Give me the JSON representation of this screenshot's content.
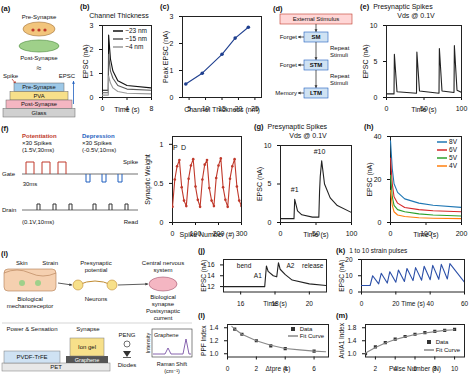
{
  "chart_data": [
    {
      "panel": "(b)",
      "type": "line",
      "title": "Channel Thickness",
      "xlabel": "Time (s)",
      "ylabel": "EPSC (nA)",
      "xlim": [
        0,
        8
      ],
      "xticks": [
        0,
        4,
        8
      ],
      "ylim": [
        0,
        3
      ],
      "yticks": [
        0,
        1,
        2,
        3
      ],
      "legend": "top-right",
      "x": [
        0,
        0.95,
        1,
        1.3,
        1.7,
        2.5,
        4,
        8
      ],
      "series": [
        {
          "name": "~23 nm",
          "color": "#111111",
          "values": [
            0.3,
            0.3,
            2.6,
            1.6,
            1.1,
            0.7,
            0.5,
            0.4
          ]
        },
        {
          "name": "~15 nm",
          "color": "#5b5b5b",
          "values": [
            0.2,
            0.2,
            1.8,
            1.1,
            0.8,
            0.5,
            0.35,
            0.3
          ]
        },
        {
          "name": "~4 nm",
          "color": "#9a9a9a",
          "values": [
            0.1,
            0.1,
            0.9,
            0.6,
            0.4,
            0.25,
            0.18,
            0.15
          ]
        }
      ]
    },
    {
      "panel": "(c)",
      "type": "line",
      "xlabel": "Channel Thickness (nm)",
      "ylabel": "Peak EPSC (nA)",
      "xlim": [
        3,
        27
      ],
      "xticks": [
        5,
        10,
        15,
        20,
        25
      ],
      "ylim": [
        0,
        3
      ],
      "yticks": [
        0,
        1,
        2,
        3
      ],
      "x": [
        4,
        9,
        15,
        19,
        23
      ],
      "series": [
        {
          "color": "#1f3f8f",
          "marker": "circle",
          "values": [
            0.5,
            0.9,
            1.6,
            2.2,
            2.6
          ]
        }
      ]
    },
    {
      "panel": "(e)",
      "type": "line",
      "title": "Presynaptic Spikes",
      "subtitle": "Vds @ 0.1V",
      "xlabel": "Time (s)",
      "ylabel": "EPSC (nA)",
      "xlim": [
        0,
        100
      ],
      "xticks": [
        0,
        50,
        100
      ],
      "ylim": [
        0,
        10
      ],
      "yticks": [
        0,
        5,
        10
      ],
      "x": [
        0,
        10,
        10.5,
        14,
        40,
        40.5,
        44,
        70,
        70.5,
        74,
        90,
        90.5,
        94,
        100
      ],
      "series": [
        {
          "color": "#222222",
          "values": [
            0.5,
            0.5,
            6.0,
            0.8,
            0.6,
            6.3,
            0.9,
            0.6,
            6.8,
            0.9,
            0.7,
            7.2,
            1.0,
            0.7
          ]
        }
      ]
    },
    {
      "type": "line",
      "xlabel": "Spike Number (#)",
      "ylabel": "Synaptic Weight",
      "xlim": [
        0,
        300
      ],
      "xticks": [
        0,
        100,
        200,
        300
      ],
      "ylim": [
        0,
        1.1
      ],
      "yticks": [
        0,
        0.5,
        1
      ],
      "x": [
        0,
        10,
        20,
        30,
        40,
        50,
        60,
        70,
        80,
        90,
        100,
        110,
        120,
        130,
        140,
        150,
        160,
        170,
        180,
        190,
        200,
        210,
        220,
        230,
        240,
        250,
        260,
        270,
        280,
        290,
        300
      ],
      "series": [
        {
          "color": "#c0392b",
          "marker": "circle",
          "values": [
            0.2,
            0.55,
            0.72,
            0.8,
            0.45,
            0.28,
            0.21,
            0.56,
            0.73,
            0.81,
            0.46,
            0.29,
            0.2,
            0.55,
            0.74,
            0.8,
            0.44,
            0.28,
            0.21,
            0.57,
            0.73,
            0.82,
            0.45,
            0.29,
            0.2,
            0.56,
            0.72,
            0.81,
            0.46,
            0.28,
            0.21
          ]
        }
      ],
      "annotations": [
        {
          "text": "P",
          "x": 12,
          "y": 0.95
        },
        {
          "text": "D",
          "x": 48,
          "y": 0.95
        }
      ]
    },
    {
      "panel": "(g)",
      "type": "line",
      "title": "Presynaptic Spikes",
      "subtitle": "Vds @ 0.1V",
      "xlabel": "Time (s)",
      "ylabel": "EPSC (nA)",
      "xlim": [
        0,
        100
      ],
      "xticks": [
        0,
        50,
        100
      ],
      "ylim": [
        0,
        10
      ],
      "yticks": [
        0,
        5,
        10
      ],
      "x": [
        0,
        19,
        20,
        24,
        30,
        45,
        54,
        55,
        56,
        58,
        62,
        70,
        80,
        100
      ],
      "series": [
        {
          "color": "#222222",
          "values": [
            0.5,
            0.5,
            3.0,
            1.5,
            1.0,
            0.7,
            0.7,
            4.0,
            6.0,
            8.0,
            5.0,
            3.2,
            2.2,
            1.3
          ]
        }
      ],
      "annotations": [
        {
          "text": "#1",
          "x": 20,
          "y": 4.3
        },
        {
          "text": "#10",
          "x": 55,
          "y": 9.2
        }
      ]
    },
    {
      "panel": "(h)",
      "type": "line",
      "xlabel": "Time (s)",
      "ylabel": "EPSC (nA)",
      "xlim": [
        0,
        200
      ],
      "xticks": [
        0,
        100,
        200
      ],
      "ylim": [
        0,
        40
      ],
      "yticks": [
        0,
        20,
        40
      ],
      "legend": "top-right",
      "x": [
        0,
        5,
        10,
        20,
        40,
        80,
        120,
        200
      ],
      "series": [
        {
          "name": "8V",
          "color": "#1f77b4",
          "values": [
            38,
            25,
            18,
            14,
            11,
            9,
            8,
            7
          ]
        },
        {
          "name": "6V",
          "color": "#d62728",
          "values": [
            30,
            18,
            12,
            9,
            7,
            6,
            5.5,
            5
          ]
        },
        {
          "name": "5V",
          "color": "#2ca02c",
          "values": [
            22,
            12,
            8,
            6,
            5,
            4,
            3.5,
            3
          ]
        },
        {
          "name": "4V",
          "color": "#ff7f0e",
          "values": [
            15,
            8,
            5,
            3.5,
            2.8,
            2.2,
            2,
            1.8
          ]
        }
      ]
    },
    {
      "panel": "(j)",
      "type": "line",
      "xlabel": "Time (s)",
      "ylabel": "EPSC (nA)",
      "xlim": [
        15,
        21
      ],
      "xticks": [
        16,
        18,
        20
      ],
      "ylim": [
        11,
        17
      ],
      "yticks": [
        12,
        14,
        16
      ],
      "x": [
        15,
        17.4,
        17.5,
        17.6,
        17.9,
        18.1,
        18.2,
        18.3,
        18.6,
        19,
        20,
        21
      ],
      "series": [
        {
          "color": "#222222",
          "values": [
            12,
            12,
            15.8,
            14.8,
            14.0,
            13.8,
            16.4,
            15.2,
            14.2,
            13.2,
            12.5,
            12.2
          ]
        }
      ],
      "annotations": [
        {
          "text": "bend",
          "x": 16.2,
          "y": 15.8
        },
        {
          "text": "A1",
          "x": 17,
          "y": 14
        },
        {
          "text": "A2",
          "x": 18.9,
          "y": 15.8
        },
        {
          "text": "release",
          "x": 20.2,
          "y": 15.8
        }
      ]
    },
    {
      "panel": "(k)",
      "type": "line",
      "title": "1 to 10 strain pulses",
      "xlabel": "Time (s)",
      "ylabel": "EPSC (nA)",
      "xlim": [
        0,
        60
      ],
      "xticks": [
        0,
        20,
        40,
        60
      ],
      "ylim": [
        0,
        20
      ],
      "yticks": [
        0,
        10,
        20
      ],
      "x": [
        0,
        5,
        6.5,
        10,
        11.5,
        15,
        16.5,
        20,
        21.5,
        25,
        26.5,
        30,
        31.5,
        35,
        36.5,
        40,
        41.5,
        45,
        46.5,
        50,
        51.5,
        60
      ],
      "series": [
        {
          "color": "#2b4fa8",
          "values": [
            4,
            4,
            10,
            5,
            11.5,
            5.5,
            12.5,
            6,
            13.5,
            6.5,
            14.5,
            7,
            15,
            7.3,
            15.8,
            7.6,
            16.4,
            7.8,
            17,
            8,
            17.5,
            6
          ]
        }
      ]
    },
    {
      "panel": "(l)",
      "type": "line",
      "xlabel": "Δtpre (s)",
      "ylabel": "PPF Index",
      "xlim": [
        0,
        7
      ],
      "xticks": [
        0,
        2,
        4,
        6
      ],
      "ylim": [
        0.95,
        1.45
      ],
      "yticks": [
        {
          "value": 1,
          "label": "1.0"
        },
        1.2,
        1.4
      ],
      "legend": "top-right",
      "series": [
        {
          "name": "Data",
          "type": "scatter",
          "marker": "square",
          "color": "#333333",
          "x": [
            0.5,
            1,
            2,
            3,
            4,
            6
          ],
          "values": [
            1.38,
            1.3,
            1.2,
            1.12,
            1.08,
            1.04
          ]
        },
        {
          "name": "Fit Curve",
          "type": "line",
          "color": "#888888",
          "x": [
            0.3,
            0.5,
            1,
            1.5,
            2,
            3,
            4,
            5,
            6,
            6.8
          ],
          "values": [
            1.42,
            1.38,
            1.3,
            1.25,
            1.2,
            1.13,
            1.08,
            1.06,
            1.04,
            1.03
          ]
        }
      ]
    },
    {
      "panel": "(m)",
      "type": "line",
      "xlabel": "Pulse Number (N)",
      "ylabel": "An/A1 Index",
      "xlim": [
        1,
        11
      ],
      "xticks": [
        2,
        4,
        6,
        8,
        10
      ],
      "ylim": [
        0.9,
        1.9
      ],
      "yticks": [
        {
          "value": 1,
          "label": "1.0"
        },
        1.4,
        1.8
      ],
      "legend": "bottom-right",
      "series": [
        {
          "name": "Data",
          "type": "scatter",
          "marker": "square",
          "color": "#333333",
          "x": [
            1,
            2,
            3,
            4,
            5,
            6,
            7,
            8,
            9,
            10
          ],
          "values": [
            1,
            1.21,
            1.34,
            1.45,
            1.53,
            1.6,
            1.65,
            1.69,
            1.72,
            1.75
          ]
        },
        {
          "name": "Fit Curve",
          "type": "line",
          "color": "#888888",
          "x": [
            1,
            2,
            3,
            4,
            5,
            6,
            7,
            8,
            9,
            10
          ],
          "values": [
            1.02,
            1.19,
            1.33,
            1.44,
            1.52,
            1.59,
            1.64,
            1.68,
            1.72,
            1.74
          ]
        }
      ]
    }
  ],
  "diagrams": {
    "a": {
      "panel": "(a)",
      "synapse_top": "Pre-Synapse",
      "synapse_bottom": "Post-Synapse",
      "approx": "≈",
      "input": "Spike",
      "output": "EPSC",
      "layers": [
        "Pre-Synapse",
        "PVA",
        "Post-Synapse",
        "Glass"
      ]
    },
    "d": {
      "panel": "(d)",
      "stimulus": "External Stimulus",
      "stages": [
        "SM",
        "STM",
        "LTM"
      ],
      "repeat": [
        "Repeat Stimuli",
        "Repeat Stimuli"
      ],
      "outcomes": [
        "Forget",
        "Forget",
        "Memory"
      ]
    },
    "f": {
      "panel": "(f)",
      "phases": [
        {
          "name": "Potentiation",
          "count": "×30 Spikes",
          "pulse": "(1.5V,30ms)"
        },
        {
          "name": "Depression",
          "count": "×30 Spikes",
          "pulse": "(-0.5V,10ms)"
        }
      ],
      "gate": "Gate",
      "drain": "Drain",
      "width": "30ms",
      "read_pulse": "(0.1V,10ms)",
      "spike": "Spike",
      "read": "Read"
    },
    "i": {
      "panel": "(i)",
      "skin": "Skin",
      "strain": "Strain",
      "mechanoreceptor": "Biological mechanoreceptor",
      "neurons": "Neurons",
      "presynaptic": "Presynaptic potential",
      "cns": "Central nervous system",
      "synapse": "Biological synapse",
      "postsynaptic": "Postsynaptic current",
      "power": "Power & Sensation",
      "device_synapse": "Synapse",
      "layers": [
        "PET",
        "PVDF-TrFE",
        "Graphene",
        "Ion gel"
      ],
      "circuit": [
        "PENG",
        "Diodes"
      ],
      "raman": {
        "xlabel": "Raman Shift (cm⁻¹)",
        "ylabel": "Intensity",
        "label": "Graphene"
      }
    }
  }
}
